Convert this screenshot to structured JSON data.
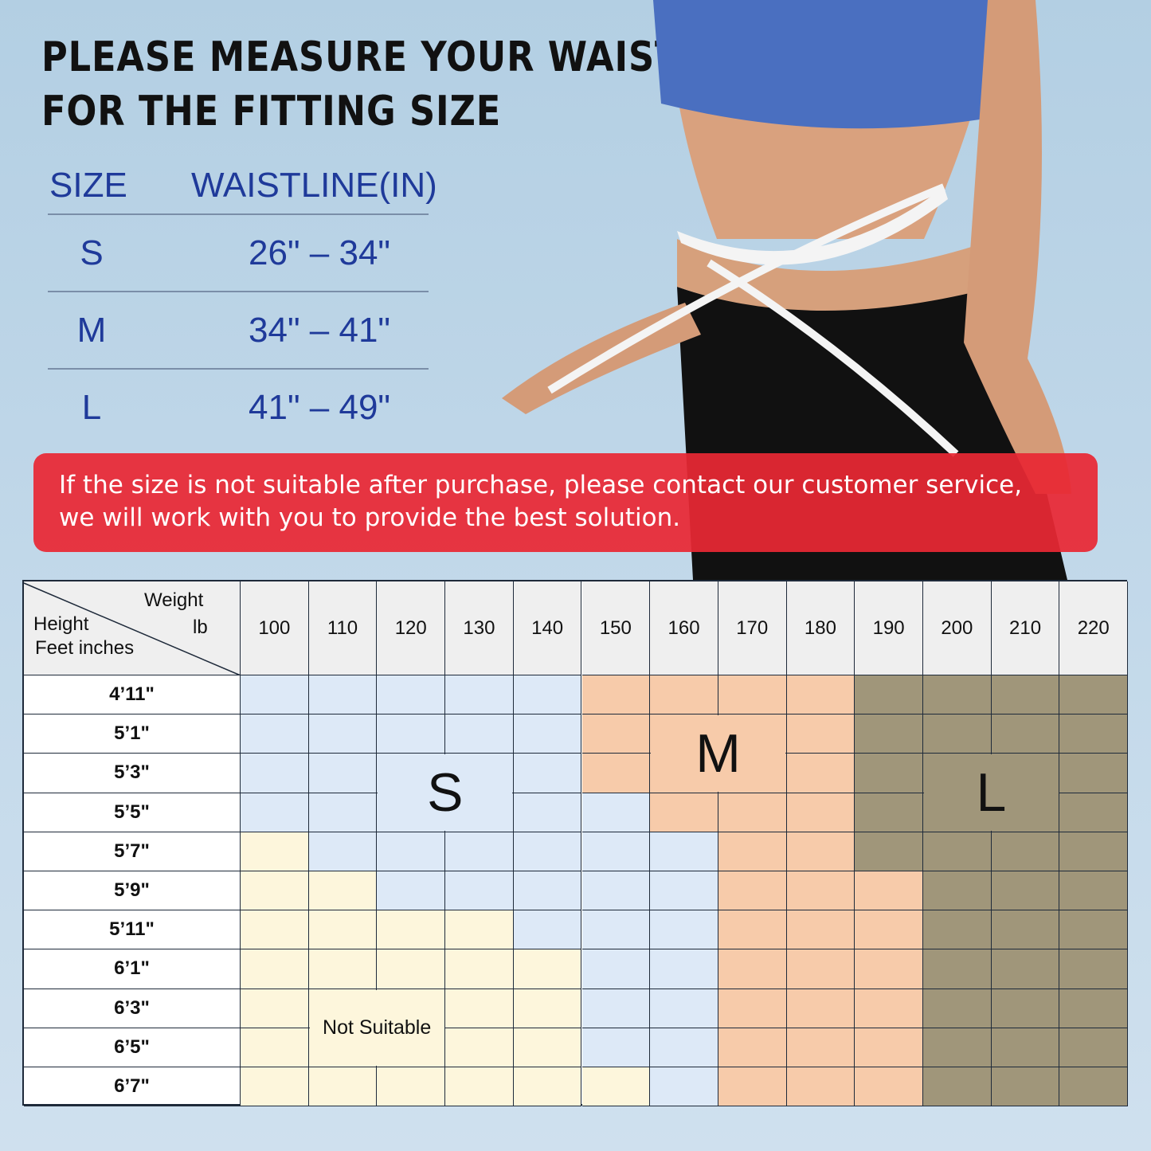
{
  "title": {
    "line1": "PLEASE MEASURE YOUR WAIST",
    "line2": "FOR THE FITTING SIZE"
  },
  "waist_table": {
    "headers": [
      "SIZE",
      "WAISTLINE(IN)"
    ],
    "rows": [
      {
        "size": "S",
        "range": "26\" – 34\""
      },
      {
        "size": "M",
        "range": "34\" – 41\""
      },
      {
        "size": "L",
        "range": "41\" – 49\""
      }
    ]
  },
  "banner": {
    "line1": "If the size is not suitable after purchase, please contact our customer service,",
    "line2": "we will work with you to provide the best solution."
  },
  "chart": {
    "corner": {
      "weight": "Weight",
      "unit": "lb",
      "height": "Height",
      "height_unit": "Feet inches"
    },
    "weights": [
      "100",
      "110",
      "120",
      "130",
      "140",
      "150",
      "160",
      "170",
      "180",
      "190",
      "200",
      "210",
      "220"
    ],
    "heights": [
      "4’11\"",
      "5’1\"",
      "5’3\"",
      "5’5\"",
      "5’7\"",
      "5’9\"",
      "5’11\"",
      "6’1\"",
      "6’3\"",
      "6’5\"",
      "6’7\""
    ],
    "legend_colors": {
      "N": "#fdf6dc",
      "S": "#dde9f7",
      "M": "#f7cbaa",
      "L": "#a0967a"
    },
    "labels": {
      "S": "S",
      "M": "M",
      "L": "L",
      "N": "Not Suitable"
    },
    "matrix": [
      "SSSSSMMMMLLLL",
      "SSSSSMMMMLLLL",
      "SSSSSMMMMLLLL",
      "SSSSSSMMMLLLL",
      "NSSSSSSMMLLLL",
      "NNSSSSSMMMLLL",
      "NNNNSSSMMMLLL",
      "NNNNNSSMMMLLL",
      "NNNNNSSMMMLLL",
      "NNNNNSSMMMLLL",
      "NNNNNNSMMMLLL"
    ]
  }
}
